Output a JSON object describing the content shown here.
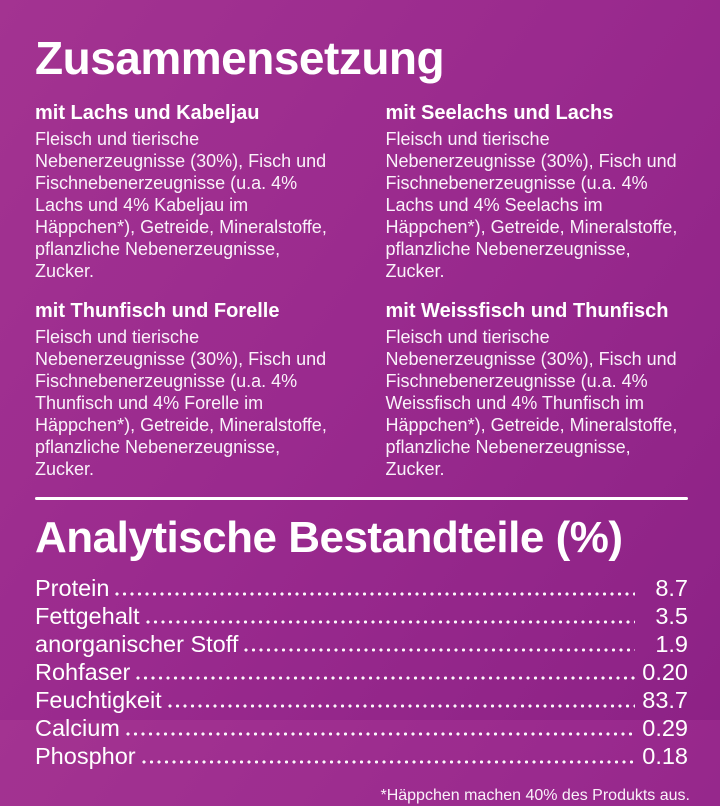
{
  "page": {
    "background_color": "#9a2a8e",
    "text_color": "#ffffff"
  },
  "composition": {
    "title": "Zusammensetzung",
    "blocks": [
      {
        "heading": "mit Lachs und Kabeljau",
        "text": "Fleisch und tierische Nebenerzeugnisse (30%), Fisch und Fischnebenerzeugnisse (u.a. 4% Lachs und 4% Kabeljau im Häppchen*), Getreide, Mineralstoffe, pflanzliche Nebenerzeugnisse, Zucker."
      },
      {
        "heading": "mit Seelachs und Lachs",
        "text": "Fleisch und tierische Nebenerzeugnisse (30%), Fisch und Fischnebenerzeugnisse (u.a. 4% Lachs und 4% Seelachs im Häppchen*), Getreide, Mineralstoffe, pflanzliche Nebenerzeugnisse, Zucker."
      },
      {
        "heading": "mit Thunfisch und Forelle",
        "text": "Fleisch und tierische Nebenerzeugnisse (30%), Fisch und Fischnebenerzeugnisse (u.a. 4% Thunfisch und 4% Forelle im Häppchen*), Getreide, Mineralstoffe, pflanzliche Nebenerzeugnisse, Zucker."
      },
      {
        "heading": "mit Weissfisch und Thunfisch",
        "text": "Fleisch und tierische Nebenerzeugnisse (30%), Fisch und Fischnebenerzeugnisse (u.a. 4% Weissfisch und 4% Thunfisch im Häppchen*), Getreide, Mineralstoffe, pflanzliche Nebenerzeugnisse, Zucker."
      }
    ]
  },
  "analysis": {
    "title": "Analytische Bestandteile (%)",
    "rows": [
      {
        "label": "Protein",
        "value": "8.7"
      },
      {
        "label": "Fettgehalt",
        "value": "3.5"
      },
      {
        "label": "anorganischer Stoff",
        "value": "1.9"
      },
      {
        "label": "Rohfaser",
        "value": "0.20"
      },
      {
        "label": "Feuchtigkeit",
        "value": "83.7"
      },
      {
        "label": "Calcium",
        "value": "0.29"
      },
      {
        "label": "Phosphor",
        "value": "0.18"
      }
    ]
  },
  "footnote": "*Häppchen machen 40% des Produkts aus."
}
